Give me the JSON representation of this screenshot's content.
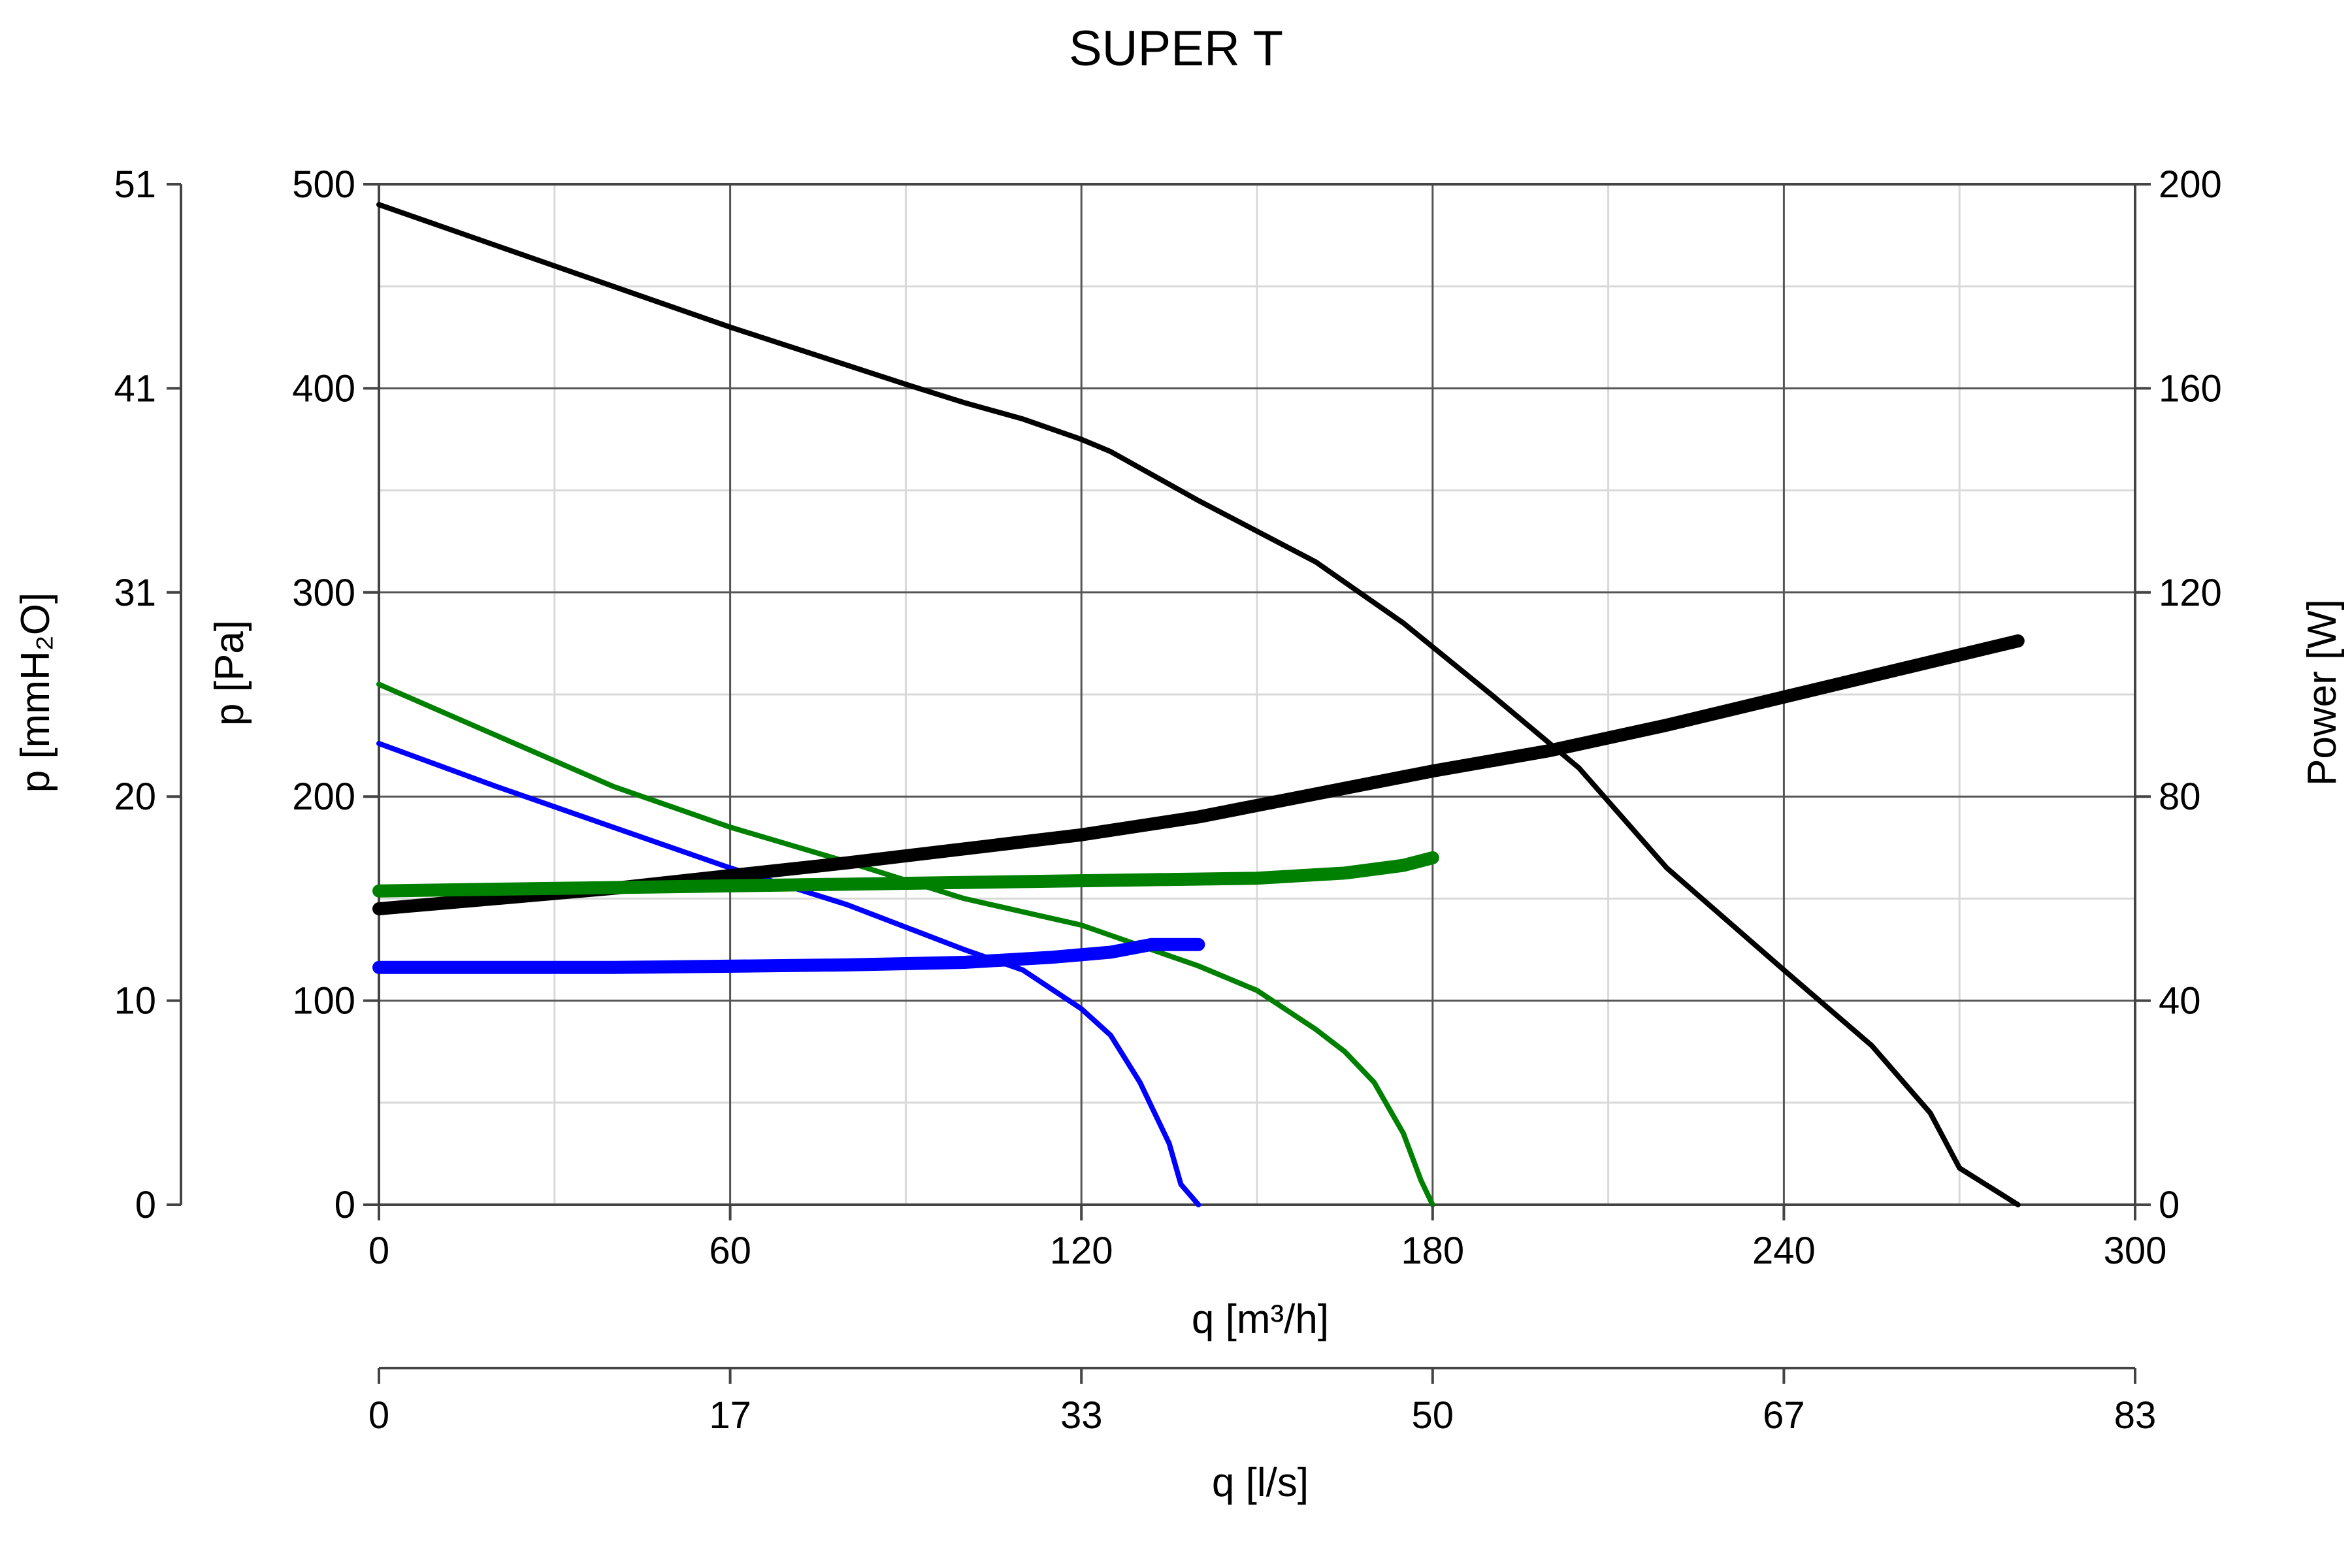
{
  "chart_data": {
    "type": "line",
    "title": "SUPER T",
    "grid": true,
    "legend": "none",
    "colors": {
      "speed_high": "#000000",
      "speed_medium": "#008000",
      "speed_low": "#0000ff",
      "grid_major": "#555555",
      "grid_minor": "#d9d9d9"
    },
    "x_axis": {
      "label": "q [m³/h]",
      "range": [
        0,
        300
      ],
      "ticks": [
        0,
        60,
        120,
        180,
        240,
        300
      ],
      "tick_labels": [
        "0",
        "60",
        "120",
        "180",
        "240",
        "300"
      ]
    },
    "x2_axis": {
      "label": "q [l/s]",
      "range": [
        0,
        83.33
      ],
      "tick_labels": [
        "0",
        "17",
        "33",
        "50",
        "67",
        "83"
      ]
    },
    "y_axis": {
      "label": "p [Pa]",
      "range": [
        0,
        500
      ],
      "ticks": [
        0,
        100,
        200,
        300,
        400,
        500
      ],
      "tick_labels": [
        "0",
        "100",
        "200",
        "300",
        "400",
        "500"
      ]
    },
    "y_axis_outer": {
      "label": "p [mmH₂O]",
      "range": [
        0,
        51
      ],
      "tick_labels": [
        "0",
        "10",
        "20",
        "31",
        "41",
        "51"
      ]
    },
    "y2_axis": {
      "label": "Power [W]",
      "range": [
        0,
        200
      ],
      "tick_labels": [
        "0",
        "40",
        "80",
        "120",
        "160",
        "200"
      ]
    },
    "series": [
      {
        "key": "pressure-high",
        "kind": "pressure",
        "axis": "y",
        "color": "#000000",
        "points": [
          [
            0,
            490
          ],
          [
            30,
            460
          ],
          [
            60,
            430
          ],
          [
            90,
            402
          ],
          [
            100,
            393
          ],
          [
            110,
            385
          ],
          [
            120,
            375
          ],
          [
            125,
            369
          ],
          [
            140,
            345
          ],
          [
            160,
            315
          ],
          [
            175,
            285
          ],
          [
            190,
            250
          ],
          [
            205,
            214
          ],
          [
            220,
            165
          ],
          [
            240,
            115
          ],
          [
            255,
            78
          ],
          [
            265,
            45
          ],
          [
            270,
            18
          ],
          [
            280,
            0
          ]
        ]
      },
      {
        "key": "pressure-medium",
        "kind": "pressure",
        "axis": "y",
        "color": "#008000",
        "points": [
          [
            0,
            255
          ],
          [
            20,
            230
          ],
          [
            40,
            205
          ],
          [
            60,
            185
          ],
          [
            80,
            168
          ],
          [
            100,
            150
          ],
          [
            120,
            137
          ],
          [
            140,
            117
          ],
          [
            150,
            105
          ],
          [
            160,
            86
          ],
          [
            165,
            75
          ],
          [
            170,
            60
          ],
          [
            175,
            35
          ],
          [
            178,
            12
          ],
          [
            180,
            0
          ]
        ]
      },
      {
        "key": "pressure-low",
        "kind": "pressure",
        "axis": "y",
        "color": "#0000ff",
        "points": [
          [
            0,
            226
          ],
          [
            20,
            205
          ],
          [
            40,
            185
          ],
          [
            60,
            165
          ],
          [
            80,
            147
          ],
          [
            100,
            125
          ],
          [
            110,
            115
          ],
          [
            120,
            96
          ],
          [
            125,
            83
          ],
          [
            130,
            60
          ],
          [
            135,
            30
          ],
          [
            137,
            10
          ],
          [
            140,
            0
          ]
        ]
      },
      {
        "key": "power-high",
        "kind": "power",
        "axis": "y2",
        "color": "#000000",
        "points": [
          [
            0,
            58
          ],
          [
            40,
            62
          ],
          [
            80,
            67
          ],
          [
            120,
            72.5
          ],
          [
            140,
            76
          ],
          [
            160,
            80.5
          ],
          [
            180,
            85
          ],
          [
            200,
            89
          ],
          [
            220,
            94
          ],
          [
            240,
            99.5
          ],
          [
            260,
            105
          ],
          [
            280,
            110.5
          ]
        ]
      },
      {
        "key": "power-medium",
        "kind": "power",
        "axis": "y2",
        "color": "#008000",
        "points": [
          [
            0,
            61.5
          ],
          [
            30,
            62
          ],
          [
            60,
            62.5
          ],
          [
            90,
            63
          ],
          [
            120,
            63.5
          ],
          [
            150,
            64
          ],
          [
            165,
            65
          ],
          [
            175,
            66.5
          ],
          [
            180,
            68
          ]
        ]
      },
      {
        "key": "power-low",
        "kind": "power",
        "axis": "y2",
        "color": "#0000ff",
        "points": [
          [
            0,
            46.5
          ],
          [
            40,
            46.5
          ],
          [
            80,
            47
          ],
          [
            100,
            47.5
          ],
          [
            115,
            48.5
          ],
          [
            125,
            49.5
          ],
          [
            132,
            51
          ],
          [
            140,
            51
          ]
        ]
      }
    ]
  }
}
